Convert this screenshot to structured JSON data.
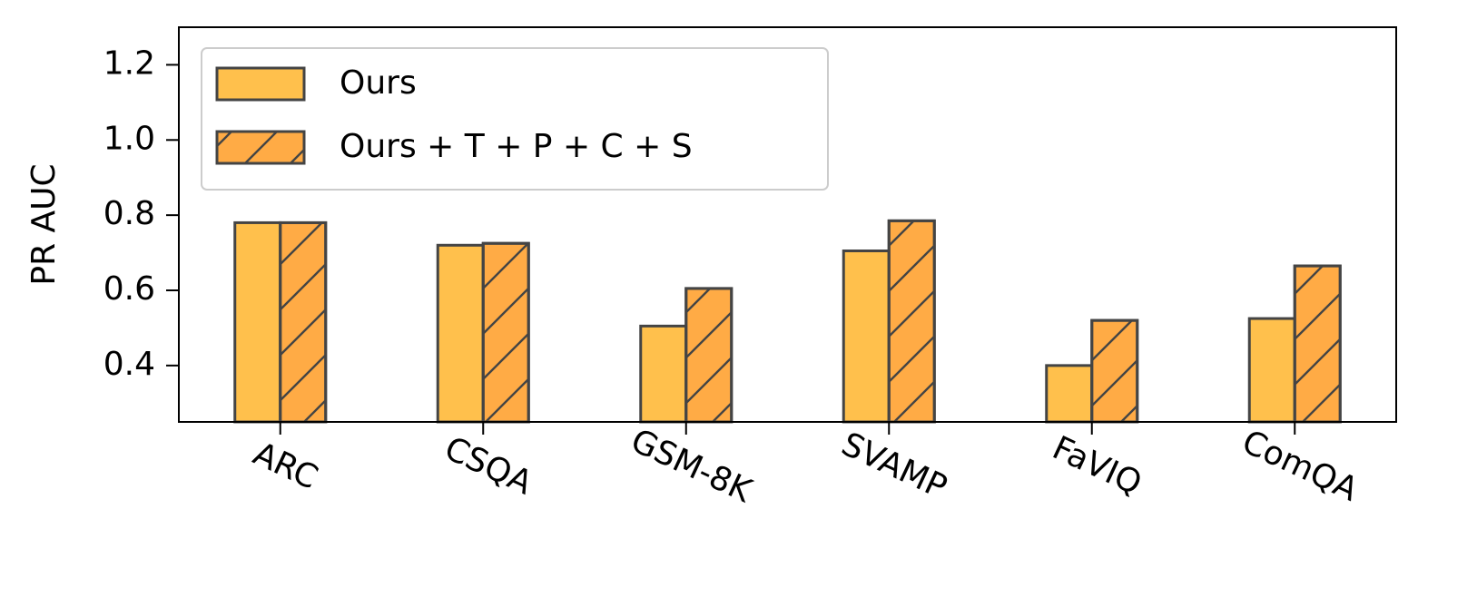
{
  "chart_data": {
    "type": "bar",
    "categories": [
      "ARC",
      "CSQA",
      "GSM-8K",
      "SVAMP",
      "FaVIQ",
      "ComQA"
    ],
    "series": [
      {
        "name": "Ours",
        "values": [
          0.78,
          0.72,
          0.505,
          0.705,
          0.4,
          0.525
        ],
        "color": "#FFC04C",
        "hatch": false
      },
      {
        "name": "Ours + T + P + C + S",
        "values": [
          0.78,
          0.725,
          0.605,
          0.785,
          0.52,
          0.665
        ],
        "color": "#FFAB45",
        "hatch": true
      }
    ],
    "title": "",
    "xlabel": "",
    "ylabel": "PR AUC",
    "ylim": [
      0.25,
      1.3
    ],
    "yticks": [
      0.4,
      0.6,
      0.8,
      1.0,
      1.2
    ],
    "ytick_labels": [
      "0.4",
      "0.6",
      "0.8",
      "1.0",
      "1.2"
    ],
    "grid": false,
    "legend_position": "top-left",
    "edge_color": "#444444",
    "x_tick_rotation": "slanted"
  }
}
